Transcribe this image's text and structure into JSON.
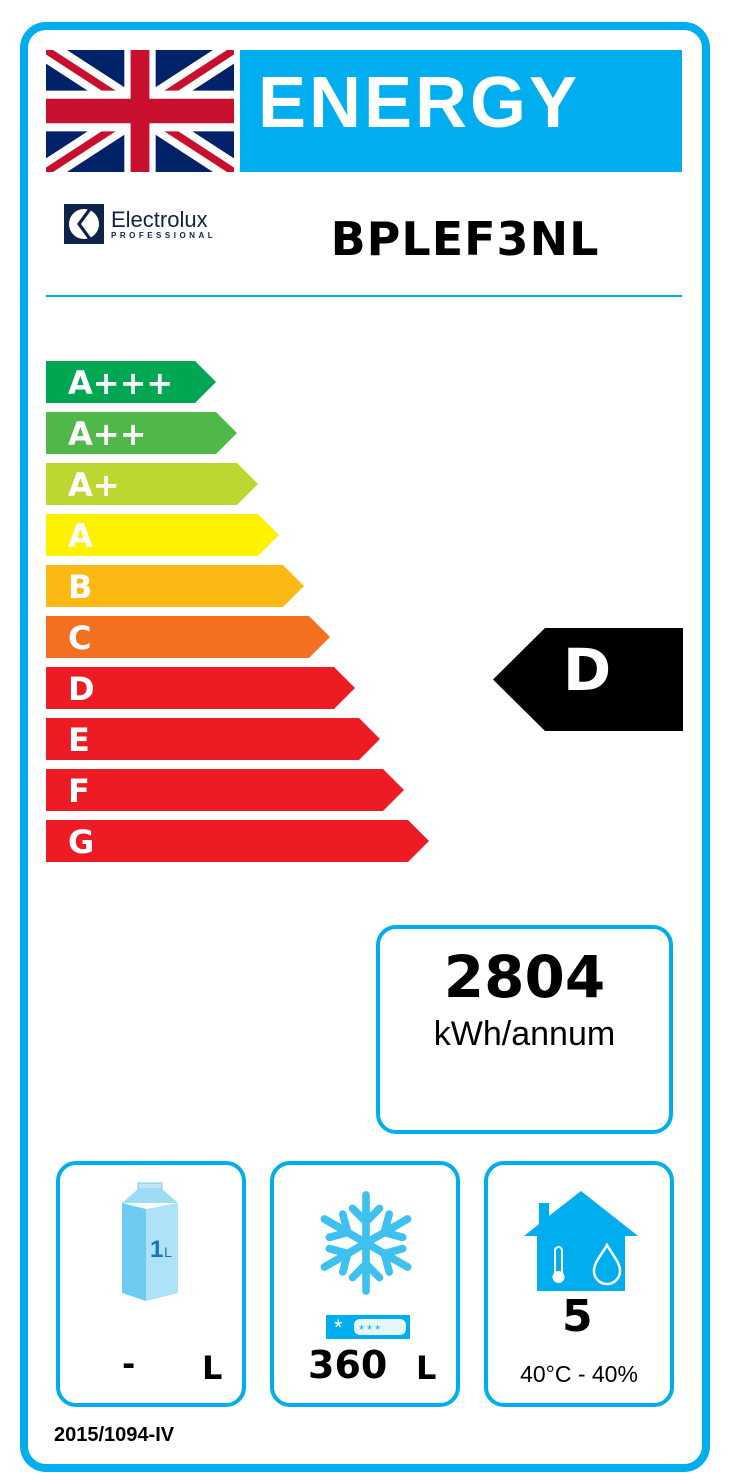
{
  "header": {
    "title": "ENERGY",
    "flag": "union-jack",
    "brand": "Electrolux",
    "brand_sub": "PROFESSIONAL",
    "model": "BPLEF3NL"
  },
  "scale": [
    {
      "label": "A+++",
      "color": "#00a651"
    },
    {
      "label": "A++",
      "color": "#50b848"
    },
    {
      "label": "A+",
      "color": "#bed630"
    },
    {
      "label": "A",
      "color": "#fff200"
    },
    {
      "label": "B",
      "color": "#fdb913"
    },
    {
      "label": "C",
      "color": "#f37021"
    },
    {
      "label": "D",
      "color": "#ed1c24"
    },
    {
      "label": "E",
      "color": "#ed1c24"
    },
    {
      "label": "F",
      "color": "#ed1c24"
    },
    {
      "label": "G",
      "color": "#ed1c24"
    }
  ],
  "rating": {
    "class": "D"
  },
  "consumption": {
    "value": "2804",
    "unit": "kWh/annum"
  },
  "chilled": {
    "icon": "milk-carton-icon",
    "carton_label": "1",
    "carton_unit": "L",
    "value": "-",
    "unit": "L"
  },
  "frozen": {
    "icon": "snowflake-icon",
    "value": "360",
    "unit": "L"
  },
  "climate": {
    "icon": "house-climate-icon",
    "class": "5",
    "conditions": "40°C - 40%"
  },
  "footer": {
    "regulation": "2015/1094-IV"
  },
  "colors": {
    "accent": "#00aeef"
  }
}
